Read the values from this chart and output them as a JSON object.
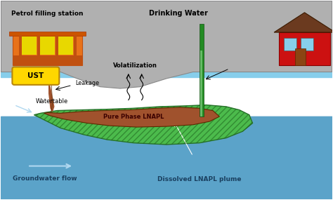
{
  "fig_width": 4.74,
  "fig_height": 2.85,
  "dpi": 100,
  "bg_color": "#FFFFFF",
  "sky_color": "#87CEEB",
  "ground_color": "#B0B0B0",
  "water_color": "#5BA3C9",
  "lnapl_green_color": "#4CBB4C",
  "lnapl_brown_color": "#A0522D",
  "ust_color": "#FFD700",
  "building_left_color": "#E8721A",
  "building_right_color": "#CC1111",
  "roof_left_color": "#CC5500",
  "roof_right_color": "#6B3A1F",
  "text_labels": {
    "petrol_station": "Petrol filling station",
    "drinking_water": "Drinking Water",
    "ust": "UST",
    "leakage": "Leakage",
    "volatilization": "Volatilization",
    "pure_phase": "Pure Phase LNAPL",
    "watertable": "Watertable",
    "gw_flow": "Groundwater flow",
    "dissolved": "Dissolved LNAPL plume"
  }
}
